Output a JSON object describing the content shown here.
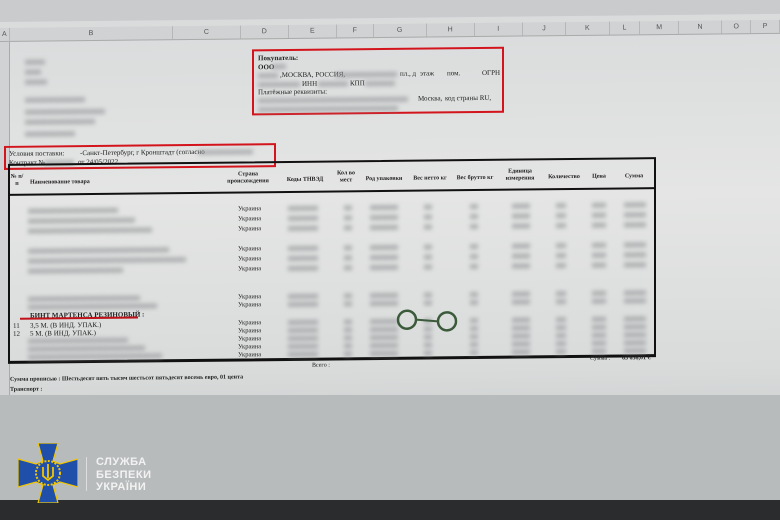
{
  "spreadsheet": {
    "column_letters": [
      "A",
      "B",
      "C",
      "D",
      "E",
      "F",
      "G",
      "H",
      "I",
      "J",
      "K",
      "L",
      "M",
      "N",
      "O",
      "P"
    ],
    "buyer": {
      "label": "Покупатель:",
      "org": "ООО",
      "address": ",МОСКВА, РОССИЯ,",
      "address_parts": [
        "пл., д",
        "этаж",
        "пом.",
        "ОГРН"
      ],
      "inn": "ИНН",
      "kpp": "КПП",
      "payment_label": "Платёжные реквизиты:",
      "city": "Москва,",
      "country_code": "код страны RU,"
    },
    "delivery": {
      "terms": "Условия поставки:",
      "terms_value": "-Санкт-Петербург, г Кронштадт (согласно",
      "contract": "Контракт №",
      "contract_date": "от 24/05/2022"
    },
    "table": {
      "headers": [
        "№ п/п",
        "Наименование товара",
        "Страна происхождения",
        "Коды ТНВЭД",
        "Кол во мест",
        "Род упаковки",
        "Вес нетто кг",
        "Вес брутто кг",
        "Единица измерения",
        "Количество",
        "Цена",
        "Сумма"
      ],
      "country": "Украина",
      "section_title": "БИНТ МАРТЕНСА РЕЗИНОВЫЙ :",
      "items": [
        {
          "no": "11",
          "name": "3,5 М. (В ИНД. УПАК.)"
        },
        {
          "no": "12",
          "name": "5 М. (В ИНД. УПАК.)"
        }
      ],
      "total_label": "Всего :",
      "sum_label": "Сумма :",
      "sum_value": "65 658,01 €"
    },
    "sum_words": "Сумма прописью : Шестьдесят пять тысяч шестьсот пятьдесят восемь евро, 01 цента",
    "transport": "Транспорт :"
  },
  "watermark": {
    "lines": [
      "СЛУЖБА",
      "БЕЗПЕКИ",
      "УКРАЇНИ"
    ],
    "colors": {
      "cross": "#1f4fa8",
      "trident": "#f2c500"
    }
  },
  "highlight_color": "#d3141c"
}
